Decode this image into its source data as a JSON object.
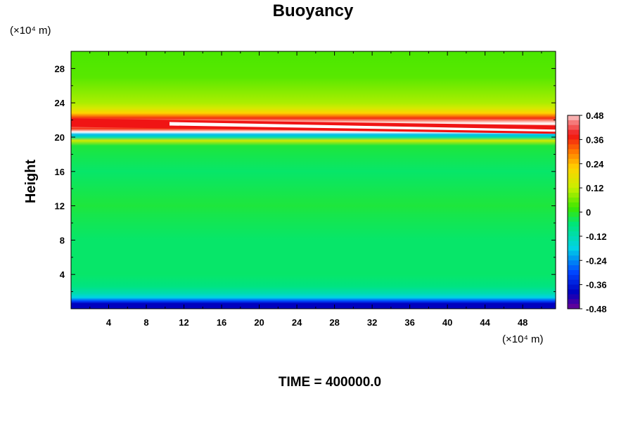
{
  "chart_data": {
    "type": "heatmap",
    "title": "Buoyancy",
    "xlabel": "",
    "ylabel": "Height",
    "x_unit": "(×10⁴ m)",
    "y_unit": "(×10⁴ m)",
    "xlim": [
      0,
      51.5
    ],
    "ylim": [
      0,
      30
    ],
    "x_ticks": [
      4,
      8,
      12,
      16,
      20,
      24,
      28,
      32,
      36,
      40,
      44,
      48
    ],
    "x_tick_labels": [
      "4",
      "8",
      "12",
      "16",
      "20",
      "24",
      "28",
      "32",
      "36",
      "40",
      "44",
      "48"
    ],
    "y_ticks": [
      4,
      8,
      12,
      16,
      20,
      24,
      28
    ],
    "y_tick_labels": [
      "4",
      "8",
      "12",
      "16",
      "20",
      "24",
      "28"
    ],
    "colorbar": {
      "min": -0.48,
      "max": 0.48,
      "ticks": [
        0.48,
        0.36,
        0.24,
        0.12,
        0,
        -0.12,
        -0.24,
        -0.36,
        -0.48
      ],
      "tick_labels": [
        "0.48",
        "0.36",
        "0.24",
        "0.12",
        "0",
        "-0.12",
        "-0.24",
        "-0.36",
        "-0.48"
      ]
    },
    "profile": {
      "description_units": "buoyancy value vs height (×10⁴ m), approximately uniform in x",
      "height": [
        0.0,
        0.6,
        0.9,
        1.3,
        1.8,
        2.6,
        4.0,
        8.0,
        11.0,
        12.0,
        16.0,
        19.0,
        19.6,
        20.0,
        20.3,
        20.6,
        21.0,
        21.6,
        22.2,
        22.8,
        23.4,
        24.0,
        25.0,
        27.0,
        30.0
      ],
      "value": [
        -0.4,
        -0.4,
        -0.3,
        -0.18,
        -0.12,
        -0.07,
        -0.05,
        -0.05,
        -0.03,
        -0.02,
        -0.05,
        -0.02,
        0.14,
        -0.12,
        -0.2,
        0.5,
        0.36,
        0.52,
        0.36,
        0.22,
        0.14,
        0.1,
        0.08,
        0.04,
        0.03
      ]
    },
    "tilted_layer": {
      "note": "white/red maximum band descends slightly from left to right",
      "x": [
        0,
        51.5
      ],
      "height": [
        21.6,
        20.8
      ]
    }
  },
  "footer": {
    "time_label": "TIME = 400000.0"
  }
}
